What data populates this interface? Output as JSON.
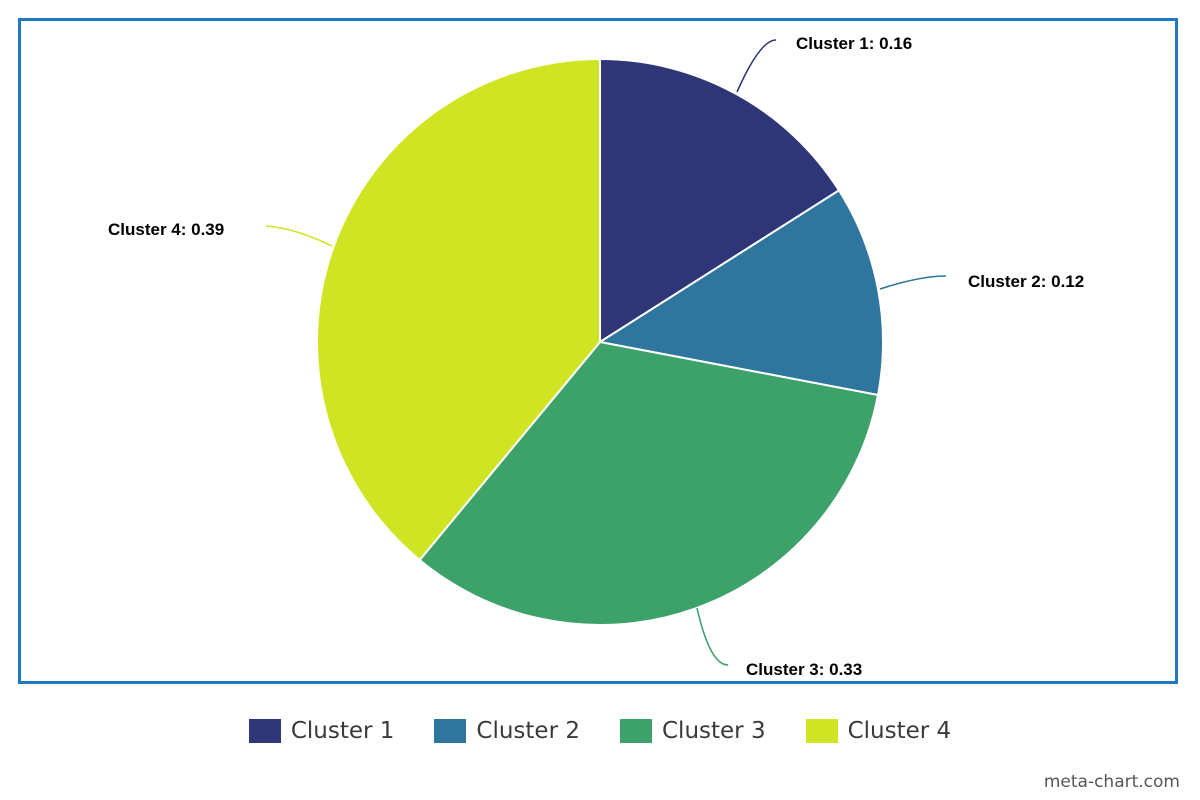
{
  "chart_data": {
    "type": "pie",
    "categories": [
      "Cluster 1",
      "Cluster 2",
      "Cluster 3",
      "Cluster 4"
    ],
    "values": [
      0.16,
      0.12,
      0.33,
      0.39
    ],
    "labels": [
      "Cluster 1: 0.16",
      "Cluster 2: 0.12",
      "Cluster 3: 0.33",
      "Cluster 4: 0.39"
    ],
    "colors": [
      "#2e3677",
      "#2e769e",
      "#3ca26a",
      "#cfe423"
    ],
    "legend_position": "bottom"
  },
  "frame_border_color": "#1f78c1",
  "legend": {
    "items": [
      {
        "label": "Cluster 1",
        "color": "#2e3677"
      },
      {
        "label": "Cluster 2",
        "color": "#2e769e"
      },
      {
        "label": "Cluster 3",
        "color": "#3ca26a"
      },
      {
        "label": "Cluster 4",
        "color": "#cfe423"
      }
    ]
  },
  "watermark": "meta-chart.com"
}
